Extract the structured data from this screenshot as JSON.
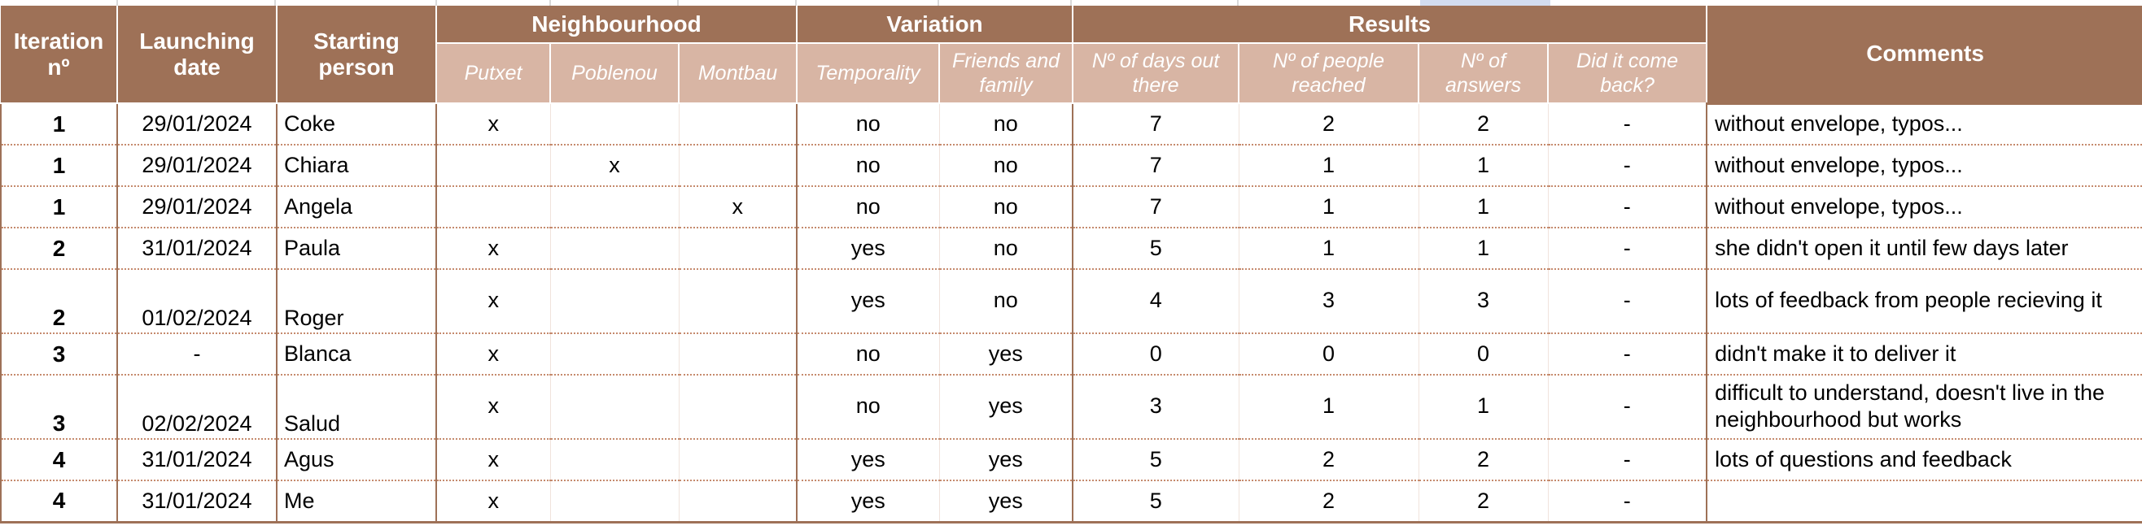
{
  "header": {
    "iteration": "Iteration nº",
    "launching_date": "Launching date",
    "starting_person": "Starting person",
    "neighbourhood": "Neighbourhood",
    "variation": "Variation",
    "results": "Results",
    "comments": "Comments",
    "neigh_putxet": "Putxet",
    "neigh_poblenou": "Poblenou",
    "neigh_montbau": "Montbau",
    "var_temporality": "Temporality",
    "var_friends": "Friends and family",
    "res_days": "Nº of days out there",
    "res_people": "Nº of people reached",
    "res_answers": "Nº of answers",
    "res_back": "Did it come back?"
  },
  "rows": [
    {
      "iteration": "1",
      "date": "29/01/2024",
      "person": "Coke",
      "putxet": "x",
      "poblenou": "",
      "montbau": "",
      "temporality": "no",
      "friends": "no",
      "days": "7",
      "people": "2",
      "answers": "2",
      "back": "-",
      "comment": "without envelope, typos..."
    },
    {
      "iteration": "1",
      "date": "29/01/2024",
      "person": "Chiara",
      "putxet": "",
      "poblenou": "x",
      "montbau": "",
      "temporality": "no",
      "friends": "no",
      "days": "7",
      "people": "1",
      "answers": "1",
      "back": "-",
      "comment": "without envelope, typos..."
    },
    {
      "iteration": "1",
      "date": "29/01/2024",
      "person": "Angela",
      "putxet": "",
      "poblenou": "",
      "montbau": "x",
      "temporality": "no",
      "friends": "no",
      "days": "7",
      "people": "1",
      "answers": "1",
      "back": "-",
      "comment": "without envelope, typos..."
    },
    {
      "iteration": "2",
      "date": "31/01/2024",
      "person": "Paula",
      "putxet": "x",
      "poblenou": "",
      "montbau": "",
      "temporality": "yes",
      "friends": "no",
      "days": "5",
      "people": "1",
      "answers": "1",
      "back": "-",
      "comment": "she didn't open it until few days later"
    },
    {
      "iteration": "2",
      "date": "01/02/2024",
      "person": "Roger",
      "putxet": "x",
      "poblenou": "",
      "montbau": "",
      "temporality": "yes",
      "friends": "no",
      "days": "4",
      "people": "3",
      "answers": "3",
      "back": "-",
      "comment": "lots of feedback from people recieving it"
    },
    {
      "iteration": "3",
      "date": "-",
      "person": "Blanca",
      "putxet": "x",
      "poblenou": "",
      "montbau": "",
      "temporality": "no",
      "friends": "yes",
      "days": "0",
      "people": "0",
      "answers": "0",
      "back": "-",
      "comment": "didn't make it to deliver it"
    },
    {
      "iteration": "3",
      "date": "02/02/2024",
      "person": "Salud",
      "putxet": "x",
      "poblenou": "",
      "montbau": "",
      "temporality": "no",
      "friends": "yes",
      "days": "3",
      "people": "1",
      "answers": "1",
      "back": "-",
      "comment": "difficult to understand, doesn't live in the neighbourhood but works"
    },
    {
      "iteration": "4",
      "date": "31/01/2024",
      "person": "Agus",
      "putxet": "x",
      "poblenou": "",
      "montbau": "",
      "temporality": "yes",
      "friends": "yes",
      "days": "5",
      "people": "2",
      "answers": "2",
      "back": "-",
      "comment": "lots of questions and feedback"
    },
    {
      "iteration": "4",
      "date": "31/01/2024",
      "person": "Me",
      "putxet": "x",
      "poblenou": "",
      "montbau": "",
      "temporality": "yes",
      "friends": "yes",
      "days": "5",
      "people": "2",
      "answers": "2",
      "back": "-",
      "comment": ""
    }
  ]
}
